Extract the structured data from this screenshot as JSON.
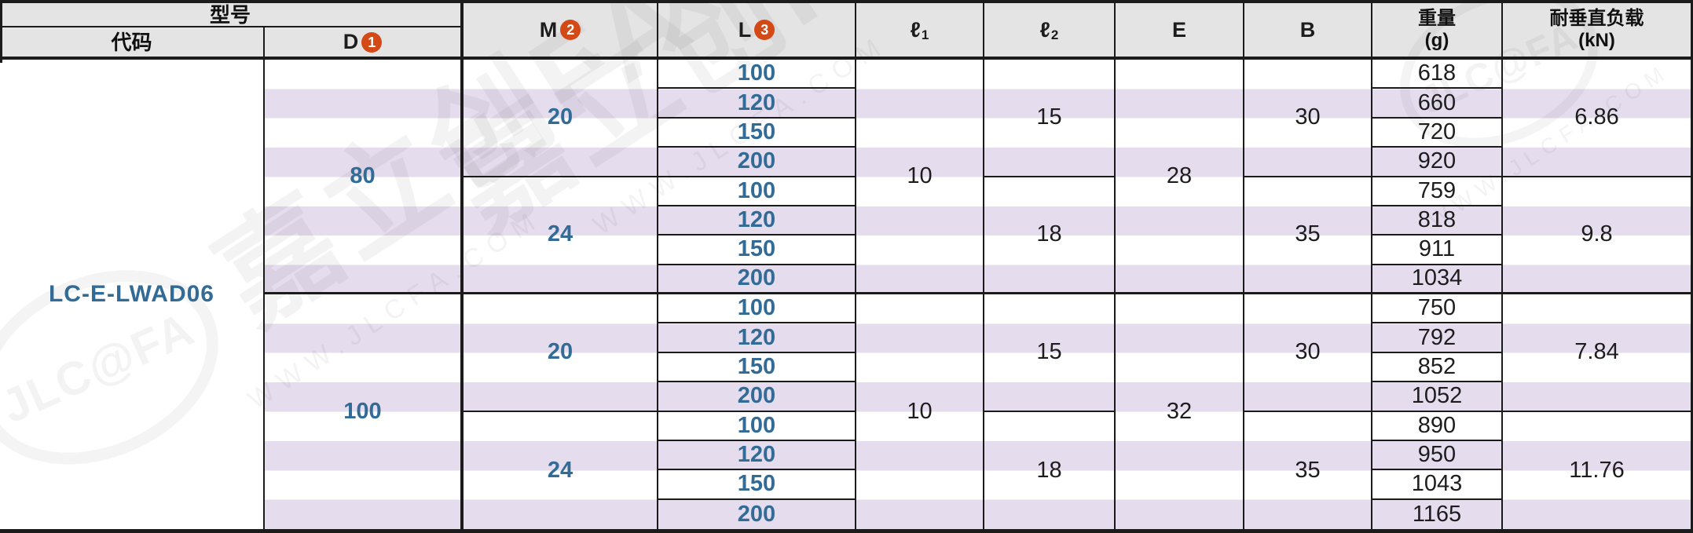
{
  "header": {
    "model_label": "型号",
    "code_label": "代码",
    "d_label": "D",
    "d_badge": "1",
    "m_label": "M",
    "m_badge": "2",
    "l_label": "L",
    "l_badge": "3",
    "l1_label": "ℓ",
    "l1_sub": "1",
    "l2_label": "ℓ",
    "l2_sub": "2",
    "e_label": "E",
    "b_label": "B",
    "weight_label": "重量",
    "weight_unit": "(g)",
    "load_label": "耐垂直负载",
    "load_unit": "(kN)"
  },
  "body": {
    "code": "LC-E-LWAD06",
    "groups": [
      {
        "d": "80",
        "l1": "10",
        "e": "28",
        "sub": [
          {
            "m": "20",
            "l2": "15",
            "b": "30",
            "load": "6.86",
            "rows": [
              [
                "100",
                "618"
              ],
              [
                "120",
                "660"
              ],
              [
                "150",
                "720"
              ],
              [
                "200",
                "920"
              ]
            ]
          },
          {
            "m": "24",
            "l2": "18",
            "b": "35",
            "load": "9.8",
            "rows": [
              [
                "100",
                "759"
              ],
              [
                "120",
                "818"
              ],
              [
                "150",
                "911"
              ],
              [
                "200",
                "1034"
              ]
            ]
          }
        ]
      },
      {
        "d": "100",
        "l1": "10",
        "e": "32",
        "sub": [
          {
            "m": "20",
            "l2": "15",
            "b": "30",
            "load": "7.84",
            "rows": [
              [
                "100",
                "750"
              ],
              [
                "120",
                "792"
              ],
              [
                "150",
                "852"
              ],
              [
                "200",
                "1052"
              ]
            ]
          },
          {
            "m": "24",
            "l2": "18",
            "b": "35",
            "load": "11.76",
            "rows": [
              [
                "100",
                "890"
              ],
              [
                "120",
                "950"
              ],
              [
                "150",
                "1043"
              ],
              [
                "200",
                "1165"
              ]
            ]
          }
        ]
      }
    ]
  },
  "watermark": {
    "logo": "JLC@FA",
    "brand": "嘉立创FA",
    "url": "WWW.JLCFA.COM"
  },
  "colors": {
    "header_bg": "#e4e4e4",
    "stripe": "#e5dcee",
    "accent_blue": "#316b96",
    "badge_orange": "#d34a16",
    "border": "#1b1b1b"
  }
}
